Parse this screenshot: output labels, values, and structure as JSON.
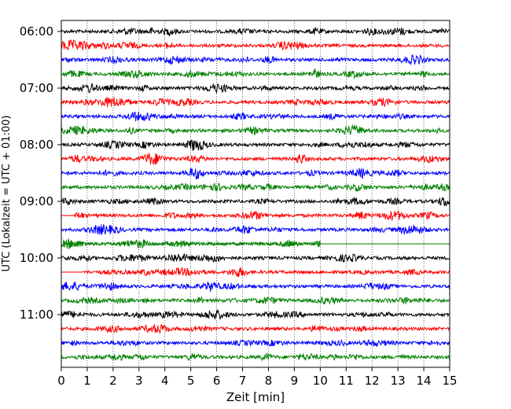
{
  "chart_data": {
    "type": "line",
    "title": "",
    "xlabel": "Zeit  [min]",
    "ylabel": "UTC (Lokalzeit = UTC + 01:00)",
    "xlim": [
      0,
      15
    ],
    "x_ticks": [
      "0",
      "1",
      "2",
      "3",
      "4",
      "5",
      "6",
      "7",
      "8",
      "9",
      "10",
      "11",
      "12",
      "13",
      "14",
      "15"
    ],
    "y_tick_labels": [
      "06:00",
      "07:00",
      "08:00",
      "09:00",
      "10:00",
      "11:00"
    ],
    "grid": "vertical dotted",
    "rows_per_hour": 4,
    "row_minutes": 15,
    "start_time": "06:00",
    "colors": [
      "#000000",
      "#ff0000",
      "#0000ff",
      "#008000"
    ],
    "series": [
      {
        "start": "06:00",
        "color": "#000000"
      },
      {
        "start": "06:15",
        "color": "#ff0000"
      },
      {
        "start": "06:30",
        "color": "#0000ff"
      },
      {
        "start": "06:45",
        "color": "#008000"
      },
      {
        "start": "07:00",
        "color": "#000000"
      },
      {
        "start": "07:15",
        "color": "#ff0000"
      },
      {
        "start": "07:30",
        "color": "#0000ff"
      },
      {
        "start": "07:45",
        "color": "#008000"
      },
      {
        "start": "08:00",
        "color": "#000000"
      },
      {
        "start": "08:15",
        "color": "#ff0000"
      },
      {
        "start": "08:30",
        "color": "#0000ff"
      },
      {
        "start": "08:45",
        "color": "#008000"
      },
      {
        "start": "09:00",
        "color": "#000000"
      },
      {
        "start": "09:15",
        "color": "#ff0000",
        "quiet_from": 0,
        "quiet_to": 0.5
      },
      {
        "start": "09:30",
        "color": "#0000ff"
      },
      {
        "start": "09:45",
        "color": "#008000",
        "end_minute": 10
      },
      {
        "start": "10:00",
        "color": "#000000"
      },
      {
        "start": "10:15",
        "color": "#ff0000",
        "start_minute": 0.8
      },
      {
        "start": "10:30",
        "color": "#0000ff"
      },
      {
        "start": "10:45",
        "color": "#008000"
      },
      {
        "start": "11:00",
        "color": "#000000"
      },
      {
        "start": "11:15",
        "color": "#ff0000"
      },
      {
        "start": "11:30",
        "color": "#0000ff"
      },
      {
        "start": "11:45",
        "color": "#008000"
      }
    ]
  }
}
